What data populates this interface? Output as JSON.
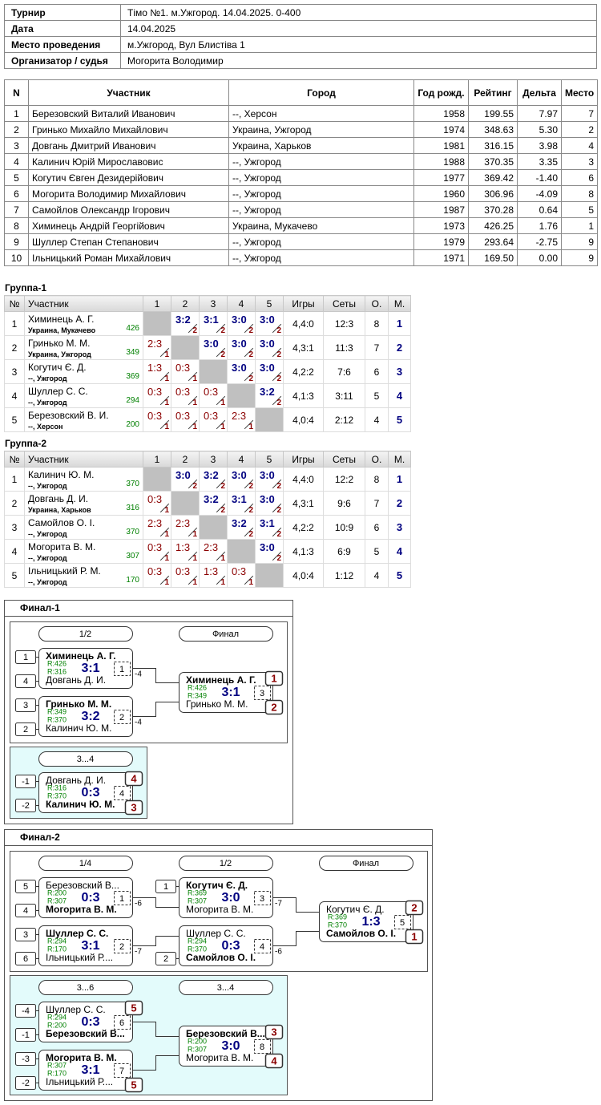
{
  "info": {
    "rows": [
      [
        "Турнир",
        "Тімо №1. м.Ужгород. 14.04.2025. 0-400"
      ],
      [
        "Дата",
        "14.04.2025"
      ],
      [
        "Место проведения",
        "м.Ужгород, Вул Блистіва 1"
      ],
      [
        "Организатор / судья",
        "Могорита Володимир"
      ]
    ]
  },
  "participants": {
    "header": [
      "N",
      "Участник",
      "Город",
      "Год рожд.",
      "Рейтинг",
      "Дельта",
      "Место"
    ],
    "rows": [
      [
        "1",
        "Березовский Виталий Иванович",
        "--, Херсон",
        "1958",
        "199.55",
        "7.97",
        "7"
      ],
      [
        "2",
        "Гринько Михайло Михайлович",
        "Украина, Ужгород",
        "1974",
        "348.63",
        "5.30",
        "2"
      ],
      [
        "3",
        "Довгань Дмитрий Иванович",
        "Украина, Харьков",
        "1981",
        "316.15",
        "3.98",
        "4"
      ],
      [
        "4",
        "Калинич Юрій Мирославовис",
        "--, Ужгород",
        "1988",
        "370.35",
        "3.35",
        "3"
      ],
      [
        "5",
        "Когутич Євген Дезидерійович",
        "--, Ужгород",
        "1977",
        "369.42",
        "-1.40",
        "6"
      ],
      [
        "6",
        "Могорита Володимир Михайлович",
        "--, Ужгород",
        "1960",
        "306.96",
        "-4.09",
        "8"
      ],
      [
        "7",
        "Самойлов Олександр Ігорович",
        "--, Ужгород",
        "1987",
        "370.28",
        "0.64",
        "5"
      ],
      [
        "8",
        "Химинець Андрій Георгійович",
        "Украина, Мукачево",
        "1973",
        "426.25",
        "1.76",
        "1"
      ],
      [
        "9",
        "Шуллер Степан Степанович",
        "--, Ужгород",
        "1979",
        "293.64",
        "-2.75",
        "9"
      ],
      [
        "10",
        "Ільницький Роман Михайлович",
        "--, Ужгород",
        "1971",
        "169.50",
        "0.00",
        "9"
      ]
    ]
  },
  "groups": [
    {
      "title": "Группа-1",
      "header": [
        "№",
        "Участник",
        "1",
        "2",
        "3",
        "4",
        "5",
        "Игры",
        "Сеты",
        "О.",
        "М."
      ],
      "rows": [
        {
          "n": "1",
          "name": "Химинець А. Г.",
          "city": "Украина, Мукачево",
          "rating": "426",
          "scores": [
            null,
            {
              "score": "3:2",
              "round": "2"
            },
            {
              "score": "3:1",
              "round": "2"
            },
            {
              "score": "3:0",
              "round": "2"
            },
            {
              "score": "3:0",
              "round": "2"
            }
          ],
          "games": "4,4:0",
          "sets": "12:3",
          "points": "8",
          "place": "1"
        },
        {
          "n": "2",
          "name": "Гринько М. М.",
          "city": "Украина, Ужгород",
          "rating": "349",
          "scores": [
            {
              "score": "2:3",
              "round": "1"
            },
            null,
            {
              "score": "3:0",
              "round": "2"
            },
            {
              "score": "3:0",
              "round": "2"
            },
            {
              "score": "3:0",
              "round": "2"
            }
          ],
          "games": "4,3:1",
          "sets": "11:3",
          "points": "7",
          "place": "2"
        },
        {
          "n": "3",
          "name": "Когутич Є. Д.",
          "city": "--, Ужгород",
          "rating": "369",
          "scores": [
            {
              "score": "1:3",
              "round": "1"
            },
            {
              "score": "0:3",
              "round": "1"
            },
            null,
            {
              "score": "3:0",
              "round": "2"
            },
            {
              "score": "3:0",
              "round": "2"
            }
          ],
          "games": "4,2:2",
          "sets": "7:6",
          "points": "6",
          "place": "3"
        },
        {
          "n": "4",
          "name": "Шуллер С. С.",
          "city": "--, Ужгород",
          "rating": "294",
          "scores": [
            {
              "score": "0:3",
              "round": "1"
            },
            {
              "score": "0:3",
              "round": "1"
            },
            {
              "score": "0:3",
              "round": "1"
            },
            null,
            {
              "score": "3:2",
              "round": "2"
            }
          ],
          "games": "4,1:3",
          "sets": "3:11",
          "points": "5",
          "place": "4"
        },
        {
          "n": "5",
          "name": "Березовский В. И.",
          "city": "--, Херсон",
          "rating": "200",
          "scores": [
            {
              "score": "0:3",
              "round": "1"
            },
            {
              "score": "0:3",
              "round": "1"
            },
            {
              "score": "0:3",
              "round": "1"
            },
            {
              "score": "2:3",
              "round": "1"
            },
            null
          ],
          "games": "4,0:4",
          "sets": "2:12",
          "points": "4",
          "place": "5"
        }
      ]
    },
    {
      "title": "Группа-2",
      "header": [
        "№",
        "Участник",
        "1",
        "2",
        "3",
        "4",
        "5",
        "Игры",
        "Сеты",
        "О.",
        "М."
      ],
      "rows": [
        {
          "n": "1",
          "name": "Калинич Ю. М.",
          "city": "--, Ужгород",
          "rating": "370",
          "scores": [
            null,
            {
              "score": "3:0",
              "round": "2"
            },
            {
              "score": "3:2",
              "round": "2"
            },
            {
              "score": "3:0",
              "round": "2"
            },
            {
              "score": "3:0",
              "round": "2"
            }
          ],
          "games": "4,4:0",
          "sets": "12:2",
          "points": "8",
          "place": "1"
        },
        {
          "n": "2",
          "name": "Довгань Д. И.",
          "city": "Украина, Харьков",
          "rating": "316",
          "scores": [
            {
              "score": "0:3",
              "round": "1"
            },
            null,
            {
              "score": "3:2",
              "round": "2"
            },
            {
              "score": "3:1",
              "round": "2"
            },
            {
              "score": "3:0",
              "round": "2"
            }
          ],
          "games": "4,3:1",
          "sets": "9:6",
          "points": "7",
          "place": "2"
        },
        {
          "n": "3",
          "name": "Самойлов О. І.",
          "city": "--, Ужгород",
          "rating": "370",
          "scores": [
            {
              "score": "2:3",
              "round": "1"
            },
            {
              "score": "2:3",
              "round": "1"
            },
            null,
            {
              "score": "3:2",
              "round": "2"
            },
            {
              "score": "3:1",
              "round": "2"
            }
          ],
          "games": "4,2:2",
          "sets": "10:9",
          "points": "6",
          "place": "3"
        },
        {
          "n": "4",
          "name": "Могорита В. М.",
          "city": "--, Ужгород",
          "rating": "307",
          "scores": [
            {
              "score": "0:3",
              "round": "1"
            },
            {
              "score": "1:3",
              "round": "1"
            },
            {
              "score": "2:3",
              "round": "1"
            },
            null,
            {
              "score": "3:0",
              "round": "2"
            }
          ],
          "games": "4,1:3",
          "sets": "6:9",
          "points": "5",
          "place": "4"
        },
        {
          "n": "5",
          "name": "Ільницький Р. М.",
          "city": "--, Ужгород",
          "rating": "170",
          "scores": [
            {
              "score": "0:3",
              "round": "1"
            },
            {
              "score": "0:3",
              "round": "1"
            },
            {
              "score": "1:3",
              "round": "1"
            },
            {
              "score": "0:3",
              "round": "1"
            },
            null
          ],
          "games": "4,0:4",
          "sets": "1:12",
          "points": "4",
          "place": "5"
        }
      ]
    }
  ],
  "finals": [
    {
      "title": "Финал-1",
      "main": {
        "rounds": [
          "1/2",
          "Финал"
        ],
        "matches": [
          {
            "p1": {
              "seed": "1",
              "name": "Химинець А. Г.",
              "rating": "R:426",
              "winner": true
            },
            "p2": {
              "seed": "4",
              "name": "Довгань Д. И.",
              "rating": "R:316"
            },
            "score": "3:1",
            "num": "1",
            "loser_to": "-4"
          },
          {
            "p1": {
              "seed": "3",
              "name": "Гринько М. М.",
              "rating": "R:349",
              "winner": true
            },
            "p2": {
              "seed": "2",
              "name": "Калинич Ю. М.",
              "rating": "R:370"
            },
            "score": "3:2",
            "num": "2",
            "loser_to": "-4"
          },
          {
            "p1": {
              "name": "Химинець А. Г.",
              "rating": "R:426",
              "winner": true,
              "place": "1"
            },
            "p2": {
              "name": "Гринько М. М.",
              "rating": "R:349",
              "place": "2"
            },
            "score": "3:1",
            "num": "3"
          }
        ]
      },
      "consolation": {
        "rounds": [
          "3...4"
        ],
        "matches": [
          {
            "p1": {
              "seed": "-1",
              "name": "Довгань Д. И.",
              "rating": "R:316",
              "place": "4"
            },
            "p2": {
              "seed": "-2",
              "name": "Калинич Ю. М.",
              "rating": "R:370",
              "winner": true,
              "place": "3"
            },
            "score": "0:3",
            "num": "4"
          }
        ]
      }
    },
    {
      "title": "Финал-2",
      "main": {
        "rounds": [
          "1/4",
          "1/2",
          "Финал"
        ],
        "matches": [
          {
            "p1": {
              "seed": "5",
              "name": "Березовский В...",
              "rating": "R:200"
            },
            "p2": {
              "seed": "4",
              "name": "Могорита В. М.",
              "rating": "R:307",
              "winner": true
            },
            "score": "0:3",
            "num": "1",
            "loser_to": "-6"
          },
          {
            "p1": {
              "seed": "3",
              "name": "Шуллер С. С.",
              "rating": "R:294",
              "winner": true
            },
            "p2": {
              "seed": "6",
              "name": "Ільницький Р....",
              "rating": "R:170"
            },
            "score": "3:1",
            "num": "2",
            "loser_to": "-7"
          },
          {
            "p1": {
              "seed": "1",
              "name": "Когутич Є. Д.",
              "rating": "R:369",
              "winner": true
            },
            "p2": {
              "name": "Могорита В. М.",
              "rating": "R:307"
            },
            "score": "3:0",
            "num": "3",
            "loser_to": "-7"
          },
          {
            "p1": {
              "name": "Шуллер С. С.",
              "rating": "R:294"
            },
            "p2": {
              "seed": "2",
              "name": "Самойлов О. І.",
              "rating": "R:370",
              "winner": true
            },
            "score": "0:3",
            "num": "4",
            "loser_to": "-6"
          },
          {
            "p1": {
              "name": "Когутич Є. Д.",
              "rating": "R:369",
              "place": "2"
            },
            "p2": {
              "name": "Самойлов О. І.",
              "rating": "R:370",
              "winner": true,
              "place": "1"
            },
            "score": "1:3",
            "num": "5"
          }
        ]
      },
      "consolation": {
        "rounds": [
          "3...6",
          "3...4"
        ],
        "matches": [
          {
            "p1": {
              "seed": "-4",
              "name": "Шуллер С. С.",
              "rating": "R:294",
              "place": "5"
            },
            "p2": {
              "seed": "-1",
              "name": "Березовский В...",
              "rating": "R:200",
              "winner": true
            },
            "score": "0:3",
            "num": "6"
          },
          {
            "p1": {
              "seed": "-3",
              "name": "Могорита В. М.",
              "rating": "R:307",
              "winner": true
            },
            "p2": {
              "seed": "-2",
              "name": "Ільницький Р....",
              "rating": "R:170",
              "place": "5"
            },
            "score": "3:1",
            "num": "7"
          },
          {
            "p1": {
              "name": "Березовский В...",
              "rating": "R:200",
              "winner": true,
              "place": "3"
            },
            "p2": {
              "name": "Могорита В. М.",
              "rating": "R:307",
              "place": "4"
            },
            "score": "3:0",
            "num": "8"
          }
        ]
      }
    }
  ]
}
